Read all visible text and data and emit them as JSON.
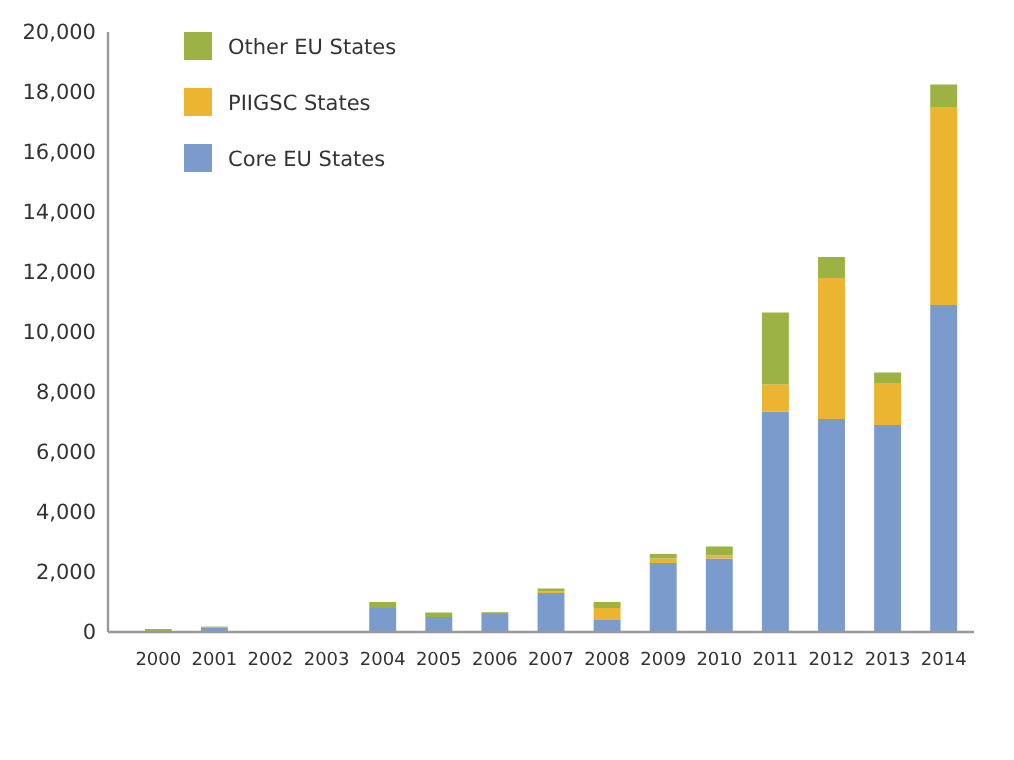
{
  "chart_data": {
    "type": "bar",
    "stacked": true,
    "legend": "top left",
    "grid": false,
    "categories": [
      "2000",
      "2001",
      "2002",
      "2003",
      "2004",
      "2005",
      "2006",
      "2007",
      "2008",
      "2009",
      "2010",
      "2011",
      "2012",
      "2013",
      "2014"
    ],
    "series": [
      {
        "name": "Core EU States",
        "color": "#7b9bcd",
        "values": [
          20,
          150,
          0,
          null,
          800,
          500,
          600,
          1300,
          400,
          2300,
          2450,
          7350,
          7100,
          6900,
          10900
        ]
      },
      {
        "name": "PIIGSC States",
        "color": "#ebb532",
        "values": [
          0,
          0,
          null,
          0,
          0,
          0,
          0,
          50,
          400,
          150,
          100,
          900,
          4700,
          1400,
          6600
        ]
      },
      {
        "name": "Other EU States",
        "color": "#9db244",
        "values": [
          80,
          30,
          0,
          null,
          200,
          150,
          60,
          100,
          200,
          150,
          300,
          2400,
          700,
          350,
          750
        ]
      }
    ],
    "ylim": [
      0,
      20000
    ],
    "yticks": [
      {
        "value": 0,
        "label": "0"
      },
      {
        "value": 2000,
        "label": "2,000"
      },
      {
        "value": 4000,
        "label": "4,000"
      },
      {
        "value": 6000,
        "label": "6,000"
      },
      {
        "value": 8000,
        "label": "8,000"
      },
      {
        "value": 10000,
        "label": "10,000"
      },
      {
        "value": 12000,
        "label": "12,000"
      },
      {
        "value": 14000,
        "label": "14,000"
      },
      {
        "value": 16000,
        "label": "16,000"
      },
      {
        "value": 18000,
        "label": "18,000"
      },
      {
        "value": 20000,
        "label": "20,000"
      }
    ]
  }
}
